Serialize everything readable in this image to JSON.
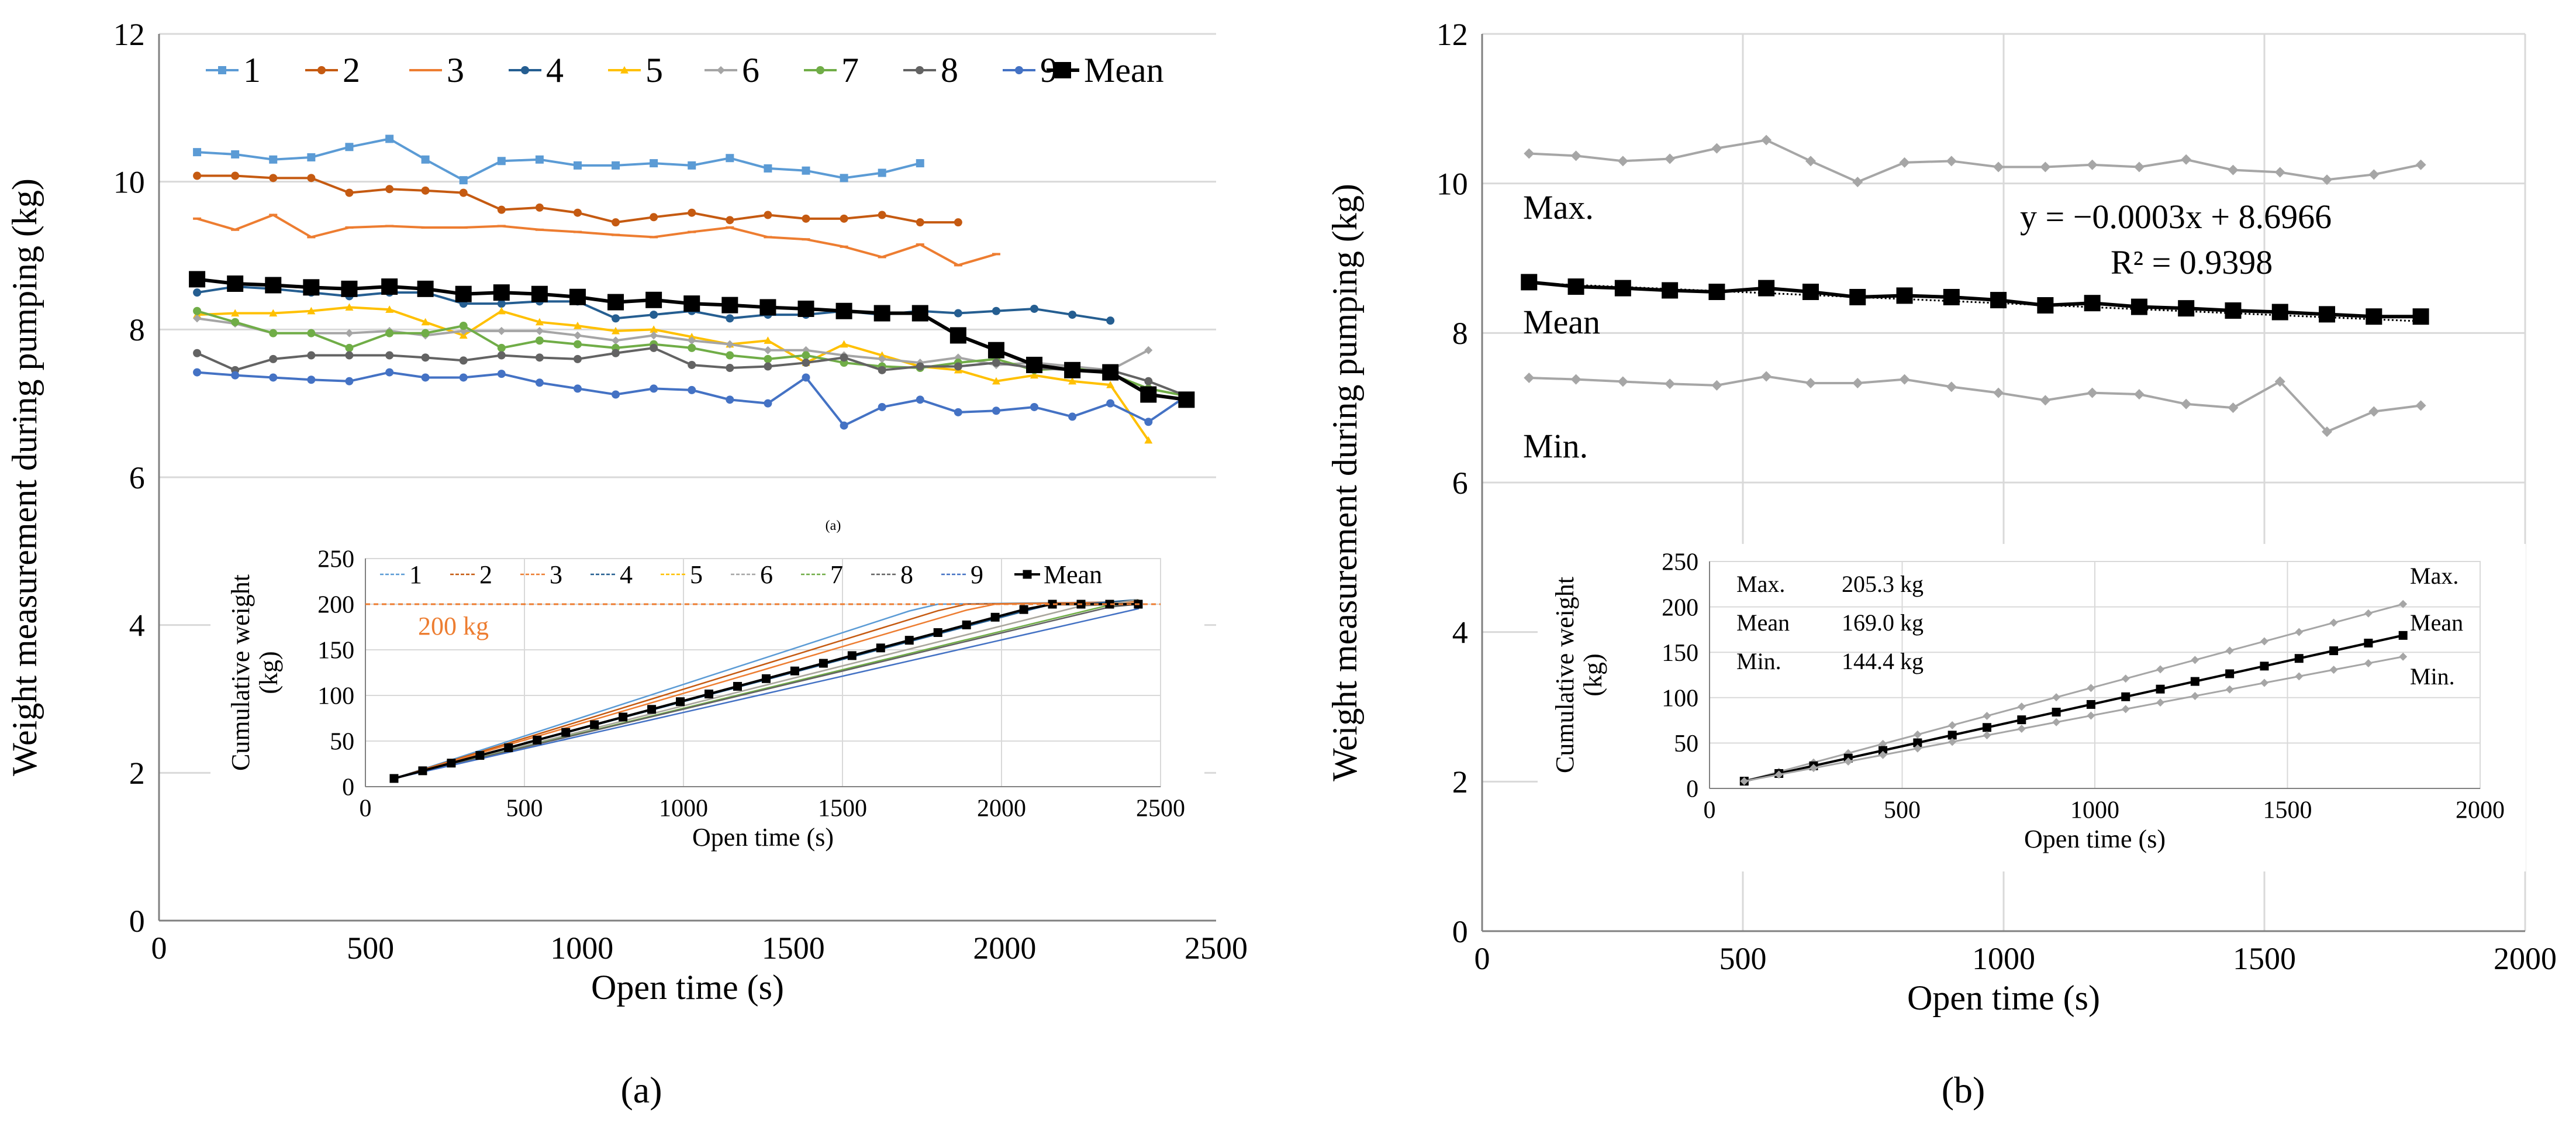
{
  "colors": {
    "s1": "#5b9bd5",
    "s2": "#c55a11",
    "s3": "#ed7d31",
    "s4": "#255e91",
    "s5": "#ffc000",
    "s6": "#a5a5a5",
    "s7": "#70ad47",
    "s8": "#636363",
    "s9": "#4472c4",
    "mean": "#000000",
    "gray": "#a6a6a6",
    "grid": "#d9d9d9",
    "ref_line": "#ed7d31"
  },
  "panel_labels": {
    "a": "(a)",
    "b": "(b)",
    "small_a": "(a)"
  },
  "chart_data": [
    {
      "id": "a_main",
      "type": "line",
      "ylabel": "Weight measurement during pumping (kg)",
      "xlabel": "Open time (s)",
      "xlim": [
        0,
        2500
      ],
      "ylim": [
        0,
        12
      ],
      "xticks": [
        0,
        500,
        1000,
        1500,
        2000,
        2500
      ],
      "yticks": [
        0,
        2,
        4,
        6,
        8,
        10,
        12
      ],
      "grid": "horizontal",
      "legend": "top",
      "series": [
        {
          "name": "1",
          "color_key": "s1",
          "marker": "square",
          "x": [
            90,
            180,
            270,
            360,
            450,
            545,
            630,
            720,
            810,
            900,
            990,
            1080,
            1170,
            1260,
            1350,
            1440,
            1530,
            1620,
            1710,
            1800
          ],
          "y": [
            10.4,
            10.37,
            10.3,
            10.33,
            10.47,
            10.58,
            10.3,
            10.02,
            10.28,
            10.3,
            10.22,
            10.22,
            10.25,
            10.22,
            10.32,
            10.18,
            10.15,
            10.05,
            10.12,
            10.25
          ]
        },
        {
          "name": "2",
          "color_key": "s2",
          "marker": "circle",
          "x": [
            90,
            180,
            270,
            360,
            450,
            545,
            630,
            720,
            810,
            900,
            990,
            1080,
            1170,
            1260,
            1350,
            1440,
            1530,
            1620,
            1710,
            1800,
            1890
          ],
          "y": [
            10.08,
            10.08,
            10.05,
            10.05,
            9.85,
            9.9,
            9.88,
            9.85,
            9.62,
            9.65,
            9.58,
            9.45,
            9.52,
            9.58,
            9.48,
            9.55,
            9.5,
            9.5,
            9.55,
            9.45,
            9.45
          ]
        },
        {
          "name": "3",
          "color_key": "s3",
          "marker": "dash",
          "x": [
            90,
            180,
            270,
            360,
            450,
            545,
            630,
            720,
            810,
            900,
            990,
            1080,
            1170,
            1260,
            1350,
            1440,
            1530,
            1620,
            1710,
            1800,
            1890,
            1980
          ],
          "y": [
            9.5,
            9.35,
            9.55,
            9.25,
            9.38,
            9.4,
            9.38,
            9.38,
            9.4,
            9.35,
            9.32,
            9.28,
            9.25,
            9.32,
            9.38,
            9.25,
            9.22,
            9.12,
            8.98,
            9.15,
            8.87,
            9.02
          ]
        },
        {
          "name": "4",
          "color_key": "s4",
          "marker": "circle",
          "x": [
            90,
            180,
            270,
            360,
            450,
            545,
            630,
            720,
            810,
            900,
            990,
            1080,
            1170,
            1260,
            1350,
            1440,
            1530,
            1620,
            1710,
            1800,
            1890,
            1980,
            2070,
            2160,
            2250
          ],
          "y": [
            8.5,
            8.58,
            8.55,
            8.5,
            8.45,
            8.5,
            8.5,
            8.35,
            8.35,
            8.38,
            8.38,
            8.15,
            8.2,
            8.25,
            8.15,
            8.2,
            8.2,
            8.25,
            8.2,
            8.25,
            8.22,
            8.25,
            8.28,
            8.2,
            8.12
          ]
        },
        {
          "name": "5",
          "color_key": "s5",
          "marker": "triangle",
          "x": [
            90,
            180,
            270,
            360,
            450,
            545,
            630,
            720,
            810,
            900,
            990,
            1080,
            1170,
            1260,
            1350,
            1440,
            1530,
            1620,
            1710,
            1800,
            1890,
            1980,
            2070,
            2160,
            2250,
            2340
          ],
          "y": [
            8.2,
            8.22,
            8.22,
            8.25,
            8.3,
            8.27,
            8.1,
            7.92,
            8.25,
            8.1,
            8.05,
            7.98,
            8.0,
            7.9,
            7.8,
            7.85,
            7.55,
            7.8,
            7.65,
            7.5,
            7.45,
            7.3,
            7.38,
            7.3,
            7.25,
            6.5
          ]
        },
        {
          "name": "6",
          "color_key": "s6",
          "marker": "diamond",
          "x": [
            90,
            180,
            270,
            360,
            450,
            545,
            630,
            720,
            810,
            900,
            990,
            1080,
            1170,
            1260,
            1350,
            1440,
            1530,
            1620,
            1710,
            1800,
            1890,
            1980,
            2070,
            2160,
            2250,
            2340
          ],
          "y": [
            8.15,
            8.08,
            7.95,
            7.95,
            7.95,
            7.98,
            7.92,
            7.98,
            7.98,
            7.98,
            7.92,
            7.85,
            7.92,
            7.85,
            7.8,
            7.72,
            7.72,
            7.65,
            7.6,
            7.55,
            7.62,
            7.52,
            7.55,
            7.5,
            7.45,
            7.72
          ]
        },
        {
          "name": "7",
          "color_key": "s7",
          "marker": "circle",
          "x": [
            90,
            180,
            270,
            360,
            450,
            545,
            630,
            720,
            810,
            900,
            990,
            1080,
            1170,
            1260,
            1350,
            1440,
            1530,
            1620,
            1710,
            1800,
            1890,
            1980,
            2070,
            2160,
            2250,
            2340,
            2430
          ],
          "y": [
            8.25,
            8.1,
            7.95,
            7.95,
            7.75,
            7.95,
            7.95,
            8.05,
            7.75,
            7.85,
            7.8,
            7.75,
            7.8,
            7.75,
            7.65,
            7.6,
            7.65,
            7.55,
            7.5,
            7.48,
            7.55,
            7.6,
            7.45,
            7.48,
            7.4,
            7.2,
            7.1
          ]
        },
        {
          "name": "8",
          "color_key": "s8",
          "marker": "circle",
          "x": [
            90,
            180,
            270,
            360,
            450,
            545,
            630,
            720,
            810,
            900,
            990,
            1080,
            1170,
            1260,
            1350,
            1440,
            1530,
            1620,
            1710,
            1800,
            1890,
            1980,
            2070,
            2160,
            2250,
            2340,
            2430
          ],
          "y": [
            7.68,
            7.45,
            7.6,
            7.65,
            7.65,
            7.65,
            7.62,
            7.58,
            7.65,
            7.62,
            7.6,
            7.68,
            7.75,
            7.52,
            7.48,
            7.5,
            7.55,
            7.62,
            7.45,
            7.5,
            7.5,
            7.55,
            7.48,
            7.45,
            7.45,
            7.3,
            7.1
          ]
        },
        {
          "name": "9",
          "color_key": "s9",
          "marker": "circle",
          "x": [
            90,
            180,
            270,
            360,
            450,
            545,
            630,
            720,
            810,
            900,
            990,
            1080,
            1170,
            1260,
            1350,
            1440,
            1530,
            1620,
            1710,
            1800,
            1890,
            1980,
            2070,
            2160,
            2250,
            2340,
            2430
          ],
          "y": [
            7.42,
            7.38,
            7.35,
            7.32,
            7.3,
            7.42,
            7.35,
            7.35,
            7.4,
            7.28,
            7.2,
            7.12,
            7.2,
            7.18,
            7.05,
            7.0,
            7.35,
            6.7,
            6.95,
            7.05,
            6.88,
            6.9,
            6.95,
            6.82,
            7.0,
            6.75,
            7.1
          ]
        },
        {
          "name": "Mean",
          "color_key": "mean",
          "marker": "bigsquare",
          "x": [
            90,
            180,
            270,
            360,
            450,
            545,
            630,
            720,
            810,
            900,
            990,
            1080,
            1170,
            1260,
            1350,
            1440,
            1530,
            1620,
            1710,
            1800,
            1890,
            1980,
            2070,
            2160,
            2250,
            2340,
            2430
          ],
          "y": [
            8.68,
            8.62,
            8.6,
            8.57,
            8.55,
            8.58,
            8.55,
            8.48,
            8.5,
            8.48,
            8.44,
            8.37,
            8.4,
            8.35,
            8.33,
            8.3,
            8.28,
            8.25,
            8.22,
            8.22,
            7.92,
            7.72,
            7.52,
            7.45,
            7.42,
            7.12,
            7.05
          ]
        }
      ]
    },
    {
      "id": "a_inset",
      "type": "line",
      "ylabel": "Cumulative weight (kg)",
      "xlabel": "Open time (s)",
      "xlim": [
        0,
        2500
      ],
      "ylim": [
        0,
        250
      ],
      "xticks": [
        0,
        500,
        1000,
        1500,
        2000,
        2500
      ],
      "yticks": [
        0,
        50,
        100,
        150,
        200,
        250
      ],
      "grid": "both",
      "legend": "top",
      "annotation": "200 kg",
      "reference_y": 200,
      "series": [
        {
          "name": "1",
          "color_key": "s1",
          "slope": 0.1133,
          "x_end": 1800
        },
        {
          "name": "2",
          "color_key": "s2",
          "slope": 0.1075,
          "x_end": 1890
        },
        {
          "name": "3",
          "color_key": "s3",
          "slope": 0.1025,
          "x_end": 1980
        },
        {
          "name": "4",
          "color_key": "s4",
          "slope": 0.0925,
          "x_end": 2250
        },
        {
          "name": "5",
          "color_key": "s5",
          "slope": 0.0875,
          "x_end": 2340
        },
        {
          "name": "6",
          "color_key": "s6",
          "slope": 0.0875,
          "x_end": 2340
        },
        {
          "name": "7",
          "color_key": "s7",
          "slope": 0.0845,
          "x_end": 2430
        },
        {
          "name": "8",
          "color_key": "s8",
          "slope": 0.0835,
          "x_end": 2430
        },
        {
          "name": "9",
          "color_key": "s9",
          "slope": 0.0795,
          "x_end": 2430
        },
        {
          "name": "Mean",
          "color_key": "mean",
          "slope": 0.0935,
          "x_end": 2430
        }
      ]
    },
    {
      "id": "b_main",
      "type": "line",
      "ylabel": "Weight measurement during pumping (kg)",
      "xlabel": "Open time (s)",
      "xlim": [
        0,
        2000
      ],
      "ylim": [
        0,
        12
      ],
      "xticks": [
        0,
        500,
        1000,
        1500,
        2000
      ],
      "yticks": [
        0,
        2,
        4,
        6,
        8,
        10,
        12
      ],
      "grid": "both",
      "labels": {
        "max": "Max.",
        "mean": "Mean",
        "min": "Min."
      },
      "trendline": {
        "equation": "y = −0.0003x + 8.6966",
        "r2": "R² = 0.9398",
        "slope": -0.0003,
        "intercept": 8.6966
      },
      "x": [
        90,
        180,
        270,
        360,
        450,
        545,
        630,
        720,
        810,
        900,
        990,
        1080,
        1170,
        1260,
        1350,
        1440,
        1530,
        1620,
        1710,
        1800
      ],
      "series": [
        {
          "name": "Max.",
          "color_key": "gray",
          "marker": "diamond",
          "y": [
            10.4,
            10.37,
            10.3,
            10.33,
            10.47,
            10.58,
            10.3,
            10.02,
            10.28,
            10.3,
            10.22,
            10.22,
            10.25,
            10.22,
            10.32,
            10.18,
            10.15,
            10.05,
            10.12,
            10.25
          ]
        },
        {
          "name": "Mean",
          "color_key": "mean",
          "marker": "bigsquare",
          "y": [
            8.68,
            8.62,
            8.6,
            8.57,
            8.55,
            8.6,
            8.55,
            8.48,
            8.5,
            8.48,
            8.44,
            8.37,
            8.4,
            8.35,
            8.33,
            8.3,
            8.28,
            8.25,
            8.22,
            8.22
          ]
        },
        {
          "name": "Min.",
          "color_key": "gray",
          "marker": "diamond",
          "y": [
            7.4,
            7.38,
            7.35,
            7.32,
            7.3,
            7.42,
            7.33,
            7.33,
            7.38,
            7.28,
            7.2,
            7.1,
            7.2,
            7.18,
            7.05,
            7.0,
            7.35,
            6.68,
            6.95,
            7.03
          ]
        }
      ]
    },
    {
      "id": "b_inset",
      "type": "line",
      "ylabel": "Cumulative weight (kg)",
      "xlabel": "Open time (s)",
      "xlim": [
        0,
        2000
      ],
      "ylim": [
        0,
        250
      ],
      "xticks": [
        0,
        500,
        1000,
        1500,
        2000
      ],
      "yticks": [
        0,
        50,
        100,
        150,
        200,
        250
      ],
      "grid": "both",
      "stats": [
        {
          "label": "Max.",
          "value": "205.3 kg"
        },
        {
          "label": "Mean",
          "value": "169.0 kg"
        },
        {
          "label": "Min.",
          "value": "144.4 kg"
        }
      ],
      "series": [
        {
          "name": "Max.",
          "color_key": "gray",
          "marker": "diamond",
          "slope": 0.1141,
          "x_end": 1800
        },
        {
          "name": "Mean",
          "color_key": "mean",
          "marker": "square",
          "slope": 0.0939,
          "x_end": 1800
        },
        {
          "name": "Min.",
          "color_key": "gray",
          "marker": "diamond",
          "slope": 0.0802,
          "x_end": 1800
        }
      ]
    }
  ]
}
